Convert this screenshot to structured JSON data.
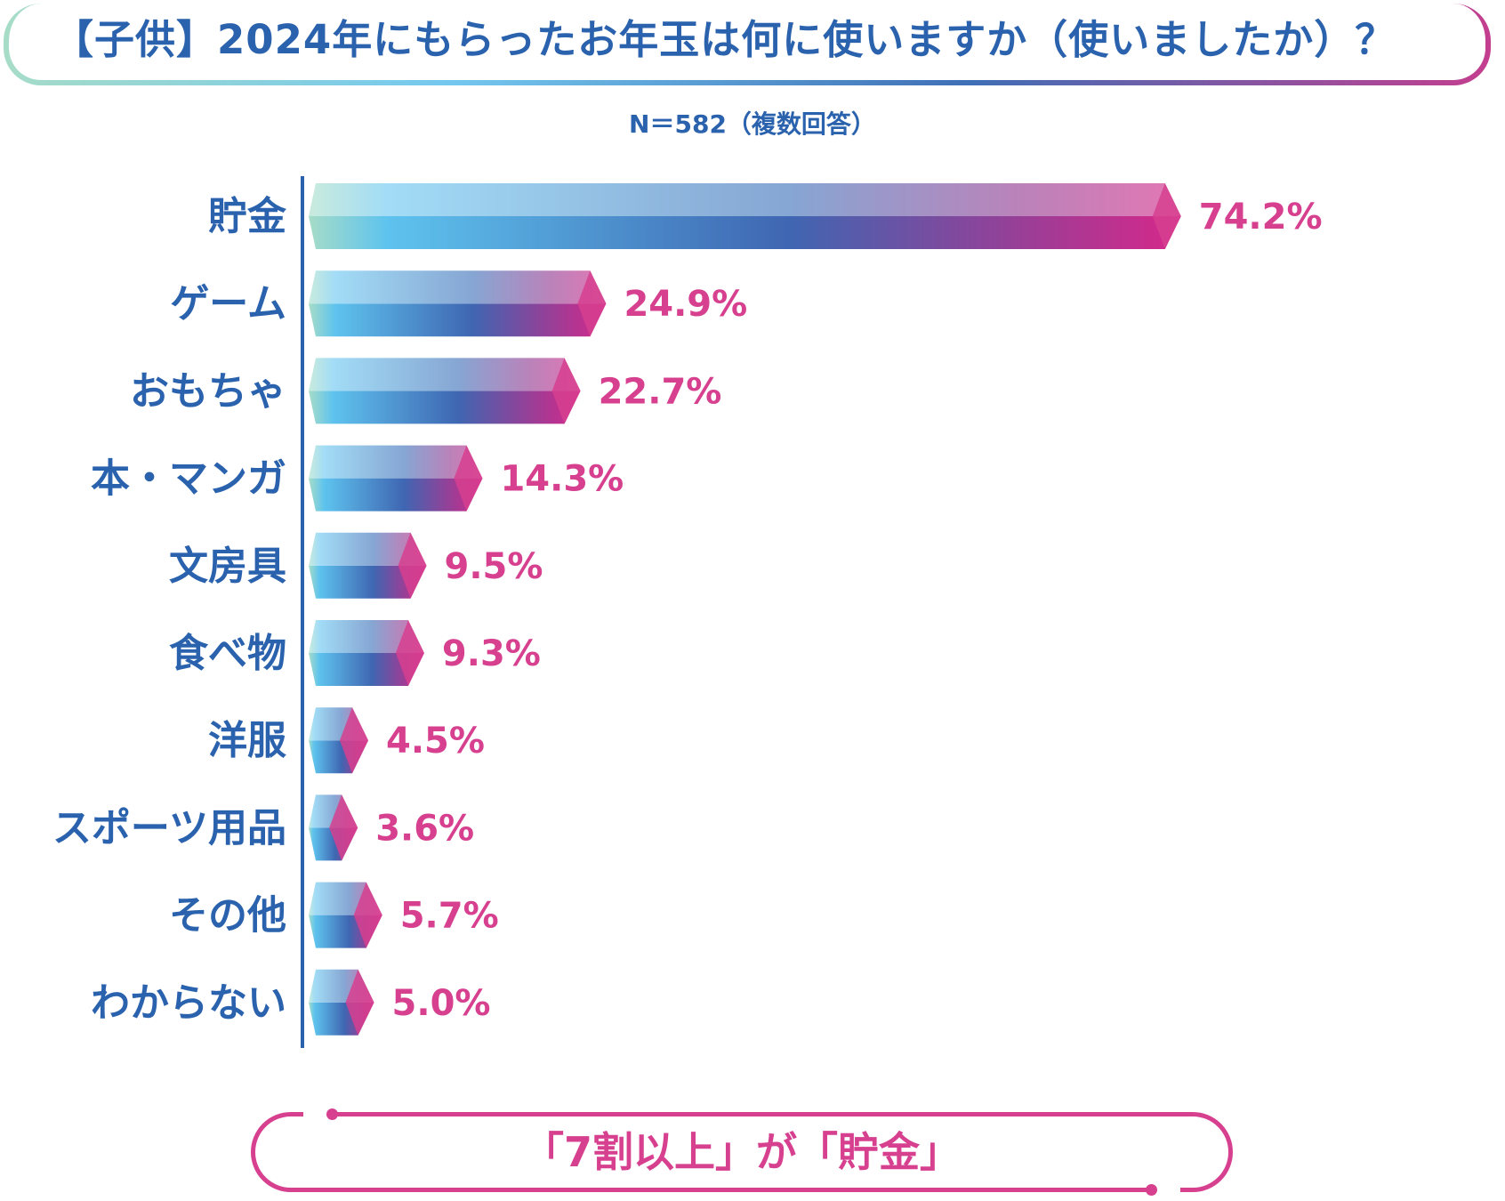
{
  "title": "【子供】2024年にもらったお年玉は何に使いますか（使いましたか）？",
  "subtitle": "N＝582（複数回答）",
  "callout": "「7割以上」が「貯金」",
  "colors": {
    "label": "#2a62ad",
    "value": "#d6408f",
    "gradient_start": "#a6dcc8",
    "gradient_light_blue": "#74c8ef",
    "gradient_blue": "#3f6fb6",
    "gradient_end": "#d6288a"
  },
  "chart_data": {
    "type": "bar",
    "orientation": "horizontal",
    "title": "【子供】2024年にもらったお年玉は何に使いますか（使いましたか）？",
    "xlabel": "",
    "ylabel": "",
    "unit": "%",
    "xlim": [
      0,
      80
    ],
    "categories": [
      "貯金",
      "ゲーム",
      "おもちゃ",
      "本・マンガ",
      "文房具",
      "食べ物",
      "洋服",
      "スポーツ用品",
      "その他",
      "わからない"
    ],
    "values": [
      74.2,
      24.9,
      22.7,
      14.3,
      9.5,
      9.3,
      4.5,
      3.6,
      5.7,
      5.0
    ],
    "value_labels": [
      "74.2%",
      "24.9%",
      "22.7%",
      "14.3%",
      "9.5%",
      "9.3%",
      "4.5%",
      "3.6%",
      "5.7%",
      "5.0%"
    ]
  }
}
